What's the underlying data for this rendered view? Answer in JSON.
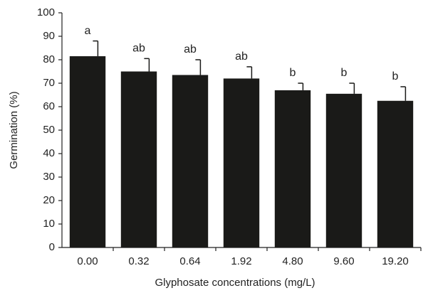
{
  "chart_data": {
    "type": "bar",
    "x_label": "Glyphosate concentrations (mg/L)",
    "y_label": "Germination (%)",
    "categories": [
      "0.00",
      "0.32",
      "0.64",
      "1.92",
      "4.80",
      "9.60",
      "19.20"
    ],
    "values": [
      81.5,
      75,
      73.5,
      72,
      67,
      65.5,
      62.5
    ],
    "errors": [
      6.5,
      5.5,
      6.5,
      5,
      3,
      4.5,
      6
    ],
    "annotations": [
      "a",
      "ab",
      "ab",
      "ab",
      "b",
      "b",
      "b"
    ],
    "color": "#1a1a18",
    "ylim": [
      0,
      100
    ],
    "yticks": [
      0,
      10,
      20,
      30,
      40,
      50,
      60,
      70,
      80,
      90,
      100
    ],
    "grid": false
  }
}
